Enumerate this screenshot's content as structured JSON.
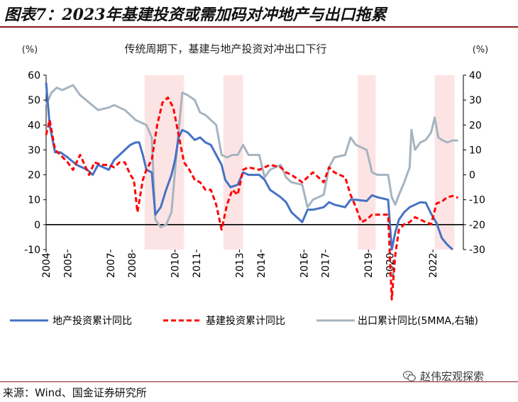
{
  "figure_title": "图表7：2023年基建投资或需加码对冲地产与出口拖累",
  "source": "来源：Wind、国金证券研究所",
  "watermark": "赵伟宏观探索",
  "watermark_icon": "wechat-icon",
  "colors": {
    "real_estate": "#4472C4",
    "infrastructure": "#FF0000",
    "exports": "#A6B4C0",
    "shade": "#FDE4E4",
    "title_rule": "#8b1a1a"
  },
  "chart_data": {
    "type": "line",
    "title": "传统周期下，基建与地产投资对冲出口下行",
    "left_axis_unit": "(%)",
    "right_axis_unit": "(%)",
    "ylim_left": [
      -10,
      60
    ],
    "ylim_right": [
      -30,
      40
    ],
    "yticks_left": [
      -10,
      0,
      10,
      20,
      30,
      40,
      50,
      60
    ],
    "yticks_right": [
      -30,
      -20,
      -10,
      0,
      10,
      20,
      30,
      40
    ],
    "xlim": [
      "2004-01",
      "2023-06"
    ],
    "xticks": [
      "2004",
      "2005",
      "2007",
      "2008",
      "2010",
      "2011",
      "2013",
      "2014",
      "2016",
      "2017",
      "2019",
      "2020",
      "2022"
    ],
    "grid": false,
    "legend_position": "bottom",
    "shaded_periods": [
      {
        "start": "2008-08",
        "end": "2010-06"
      },
      {
        "start": "2012-04",
        "end": "2013-03"
      },
      {
        "start": "2018-07",
        "end": "2019-05"
      },
      {
        "start": "2022-02",
        "end": "2023-01"
      }
    ],
    "series": [
      {
        "name": "地产投资累计同比",
        "axis": "left",
        "style": "solid",
        "points": [
          [
            "2004-01",
            57
          ],
          [
            "2004-03",
            40
          ],
          [
            "2004-06",
            29
          ],
          [
            "2004-09",
            29
          ],
          [
            "2005-01",
            27
          ],
          [
            "2005-06",
            24
          ],
          [
            "2005-12",
            22
          ],
          [
            "2006-03",
            20
          ],
          [
            "2006-06",
            24
          ],
          [
            "2006-12",
            22
          ],
          [
            "2007-03",
            26
          ],
          [
            "2007-06",
            28
          ],
          [
            "2007-09",
            30
          ],
          [
            "2007-12",
            32
          ],
          [
            "2008-03",
            33
          ],
          [
            "2008-05",
            33
          ],
          [
            "2008-07",
            28
          ],
          [
            "2008-09",
            22
          ],
          [
            "2008-12",
            21
          ],
          [
            "2009-02",
            4
          ],
          [
            "2009-05",
            7
          ],
          [
            "2009-08",
            14
          ],
          [
            "2009-11",
            20
          ],
          [
            "2010-01",
            26
          ],
          [
            "2010-03",
            35
          ],
          [
            "2010-05",
            38
          ],
          [
            "2010-08",
            37
          ],
          [
            "2010-12",
            34
          ],
          [
            "2011-03",
            35
          ],
          [
            "2011-06",
            33
          ],
          [
            "2011-09",
            32
          ],
          [
            "2011-12",
            28
          ],
          [
            "2012-03",
            24
          ],
          [
            "2012-05",
            18
          ],
          [
            "2012-08",
            15
          ],
          [
            "2012-12",
            16
          ],
          [
            "2013-03",
            21
          ],
          [
            "2013-06",
            20
          ],
          [
            "2013-12",
            20
          ],
          [
            "2014-03",
            18
          ],
          [
            "2014-06",
            14
          ],
          [
            "2014-12",
            11
          ],
          [
            "2015-03",
            9
          ],
          [
            "2015-06",
            5
          ],
          [
            "2015-12",
            1
          ],
          [
            "2016-03",
            6
          ],
          [
            "2016-06",
            6
          ],
          [
            "2016-12",
            7
          ],
          [
            "2017-03",
            9
          ],
          [
            "2017-06",
            8
          ],
          [
            "2017-12",
            7
          ],
          [
            "2018-03",
            10
          ],
          [
            "2018-06",
            10
          ],
          [
            "2018-12",
            9.5
          ],
          [
            "2019-03",
            11.8
          ],
          [
            "2019-06",
            11
          ],
          [
            "2019-12",
            10
          ],
          [
            "2020-02",
            -10
          ],
          [
            "2020-04",
            -3
          ],
          [
            "2020-06",
            2
          ],
          [
            "2020-09",
            5
          ],
          [
            "2020-12",
            7
          ],
          [
            "2021-03",
            8
          ],
          [
            "2021-06",
            9
          ],
          [
            "2021-09",
            8.8
          ],
          [
            "2021-12",
            4.4
          ],
          [
            "2022-03",
            0.7
          ],
          [
            "2022-06",
            -5.4
          ],
          [
            "2022-09",
            -8
          ],
          [
            "2022-12",
            -10
          ]
        ]
      },
      {
        "name": "基建投资累计同比",
        "axis": "left",
        "style": "dashed",
        "points": [
          [
            "2004-01",
            36
          ],
          [
            "2004-03",
            42
          ],
          [
            "2004-06",
            30
          ],
          [
            "2004-09",
            28
          ],
          [
            "2005-01",
            25
          ],
          [
            "2005-04",
            22
          ],
          [
            "2005-08",
            28
          ],
          [
            "2006-01",
            20
          ],
          [
            "2006-04",
            25
          ],
          [
            "2006-08",
            24
          ],
          [
            "2006-12",
            24
          ],
          [
            "2007-03",
            23
          ],
          [
            "2007-06",
            25
          ],
          [
            "2007-09",
            25
          ],
          [
            "2007-12",
            20
          ],
          [
            "2008-02",
            18
          ],
          [
            "2008-04",
            5
          ],
          [
            "2008-07",
            18
          ],
          [
            "2008-09",
            22
          ],
          [
            "2008-12",
            26
          ],
          [
            "2009-03",
            40
          ],
          [
            "2009-06",
            49
          ],
          [
            "2009-09",
            51
          ],
          [
            "2009-12",
            47
          ],
          [
            "2010-03",
            36
          ],
          [
            "2010-06",
            25
          ],
          [
            "2010-09",
            22
          ],
          [
            "2010-12",
            18
          ],
          [
            "2011-03",
            17
          ],
          [
            "2011-06",
            14
          ],
          [
            "2011-09",
            14
          ],
          [
            "2011-12",
            8
          ],
          [
            "2012-03",
            -2
          ],
          [
            "2012-06",
            8
          ],
          [
            "2012-09",
            14
          ],
          [
            "2012-12",
            12
          ],
          [
            "2013-03",
            22
          ],
          [
            "2013-06",
            23
          ],
          [
            "2013-12",
            22
          ],
          [
            "2014-03",
            23
          ],
          [
            "2014-06",
            24
          ],
          [
            "2014-12",
            23
          ],
          [
            "2015-03",
            21
          ],
          [
            "2015-06",
            20
          ],
          [
            "2015-12",
            17
          ],
          [
            "2016-03",
            19
          ],
          [
            "2016-06",
            21
          ],
          [
            "2016-12",
            17
          ],
          [
            "2017-03",
            23
          ],
          [
            "2017-06",
            21
          ],
          [
            "2017-12",
            19
          ],
          [
            "2018-03",
            12
          ],
          [
            "2018-06",
            7
          ],
          [
            "2018-09",
            1
          ],
          [
            "2018-12",
            2
          ],
          [
            "2019-03",
            4
          ],
          [
            "2019-06",
            4
          ],
          [
            "2019-12",
            4
          ],
          [
            "2020-02",
            -30
          ],
          [
            "2020-04",
            -12
          ],
          [
            "2020-06",
            -2
          ],
          [
            "2020-09",
            0.2
          ],
          [
            "2020-12",
            1
          ],
          [
            "2021-03",
            3
          ],
          [
            "2021-06",
            2
          ],
          [
            "2021-09",
            1
          ],
          [
            "2021-12",
            0.2
          ],
          [
            "2022-03",
            8.5
          ],
          [
            "2022-06",
            9.3
          ],
          [
            "2022-09",
            11
          ],
          [
            "2022-12",
            11.5
          ],
          [
            "2023-03",
            10.8
          ]
        ]
      },
      {
        "name": "出口累计同比(5MMA,右轴)",
        "axis": "right",
        "style": "solid",
        "points": [
          [
            "2004-01",
            28
          ],
          [
            "2004-04",
            33
          ],
          [
            "2004-07",
            35
          ],
          [
            "2004-10",
            34
          ],
          [
            "2005-01",
            35
          ],
          [
            "2005-04",
            36
          ],
          [
            "2005-08",
            32
          ],
          [
            "2006-01",
            29
          ],
          [
            "2006-06",
            26
          ],
          [
            "2006-12",
            27
          ],
          [
            "2007-03",
            28
          ],
          [
            "2007-06",
            27
          ],
          [
            "2007-09",
            26
          ],
          [
            "2007-12",
            24
          ],
          [
            "2008-03",
            22
          ],
          [
            "2008-06",
            21
          ],
          [
            "2008-09",
            20
          ],
          [
            "2008-12",
            15
          ],
          [
            "2009-02",
            -18
          ],
          [
            "2009-05",
            -21
          ],
          [
            "2009-08",
            -20
          ],
          [
            "2009-11",
            -15
          ],
          [
            "2010-02",
            10
          ],
          [
            "2010-05",
            33
          ],
          [
            "2010-08",
            32
          ],
          [
            "2010-12",
            30
          ],
          [
            "2011-03",
            25
          ],
          [
            "2011-06",
            24
          ],
          [
            "2011-09",
            22
          ],
          [
            "2011-12",
            20
          ],
          [
            "2012-03",
            8
          ],
          [
            "2012-06",
            7
          ],
          [
            "2012-09",
            8
          ],
          [
            "2012-12",
            8
          ],
          [
            "2013-03",
            12
          ],
          [
            "2013-06",
            8
          ],
          [
            "2013-12",
            8
          ],
          [
            "2014-03",
            -1
          ],
          [
            "2014-06",
            2
          ],
          [
            "2014-12",
            4
          ],
          [
            "2015-03",
            -1
          ],
          [
            "2015-06",
            -3
          ],
          [
            "2015-12",
            -4
          ],
          [
            "2016-03",
            -13
          ],
          [
            "2016-06",
            -10
          ],
          [
            "2016-12",
            -8
          ],
          [
            "2017-03",
            3
          ],
          [
            "2017-06",
            7
          ],
          [
            "2017-12",
            8
          ],
          [
            "2018-03",
            15
          ],
          [
            "2018-06",
            12
          ],
          [
            "2018-12",
            10
          ],
          [
            "2019-03",
            1
          ],
          [
            "2019-06",
            0
          ],
          [
            "2019-12",
            0
          ],
          [
            "2020-02",
            -9
          ],
          [
            "2020-04",
            -12
          ],
          [
            "2020-06",
            -8
          ],
          [
            "2020-09",
            -3
          ],
          [
            "2020-12",
            3
          ],
          [
            "2021-01",
            18
          ],
          [
            "2021-03",
            10
          ],
          [
            "2021-06",
            13
          ],
          [
            "2021-09",
            14
          ],
          [
            "2021-12",
            17
          ],
          [
            "2022-02",
            23
          ],
          [
            "2022-04",
            15
          ],
          [
            "2022-06",
            14
          ],
          [
            "2022-09",
            13
          ],
          [
            "2022-12",
            13.8
          ],
          [
            "2023-03",
            13.8
          ]
        ]
      }
    ]
  }
}
